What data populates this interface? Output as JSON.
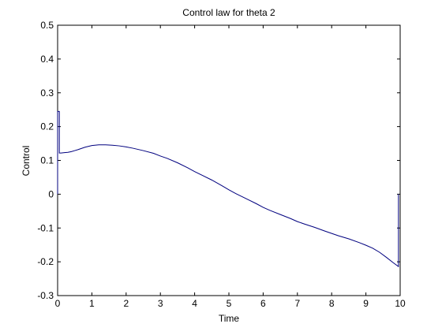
{
  "chart_data": {
    "type": "line",
    "title": "Control law for theta 2",
    "xlabel": "Time",
    "ylabel": "Control",
    "xlim": [
      0,
      10
    ],
    "ylim": [
      -0.3,
      0.5
    ],
    "xticks": [
      0,
      1,
      2,
      3,
      4,
      5,
      6,
      7,
      8,
      9,
      10
    ],
    "xtick_labels": [
      "0",
      "1",
      "2",
      "3",
      "4",
      "5",
      "6",
      "7",
      "8",
      "9",
      "10"
    ],
    "yticks": [
      -0.3,
      -0.2,
      -0.1,
      0,
      0.1,
      0.2,
      0.3,
      0.4,
      0.5
    ],
    "ytick_labels": [
      "-0.3",
      "-0.2",
      "-0.1",
      "0",
      "0.1",
      "0.2",
      "0.3",
      "0.4",
      "0.5"
    ],
    "grid": false,
    "series": [
      {
        "color": "#00007f",
        "x": [
          0,
          0,
          0.05,
          0.05,
          0.1,
          0.2,
          0.3,
          0.4,
          0.5,
          0.6,
          0.8,
          1.0,
          1.2,
          1.4,
          1.6,
          1.8,
          2.0,
          2.2,
          2.5,
          2.8,
          3.0,
          3.2,
          3.5,
          3.8,
          4.0,
          4.2,
          4.5,
          4.8,
          5.0,
          5.2,
          5.5,
          5.8,
          6.0,
          6.2,
          6.5,
          6.8,
          7.0,
          7.2,
          7.5,
          7.8,
          8.0,
          8.2,
          8.5,
          8.8,
          9.0,
          9.2,
          9.4,
          9.6,
          9.8,
          9.95,
          9.95,
          9.95
        ],
        "y": [
          0.0,
          0.245,
          0.245,
          0.122,
          0.122,
          0.123,
          0.124,
          0.126,
          0.129,
          0.132,
          0.139,
          0.144,
          0.146,
          0.146,
          0.145,
          0.143,
          0.14,
          0.136,
          0.129,
          0.121,
          0.113,
          0.106,
          0.093,
          0.078,
          0.067,
          0.057,
          0.042,
          0.025,
          0.013,
          0.002,
          -0.013,
          -0.028,
          -0.039,
          -0.048,
          -0.06,
          -0.072,
          -0.081,
          -0.088,
          -0.098,
          -0.109,
          -0.116,
          -0.123,
          -0.132,
          -0.143,
          -0.151,
          -0.16,
          -0.172,
          -0.187,
          -0.203,
          -0.214,
          -0.214,
          0.0
        ]
      }
    ]
  }
}
